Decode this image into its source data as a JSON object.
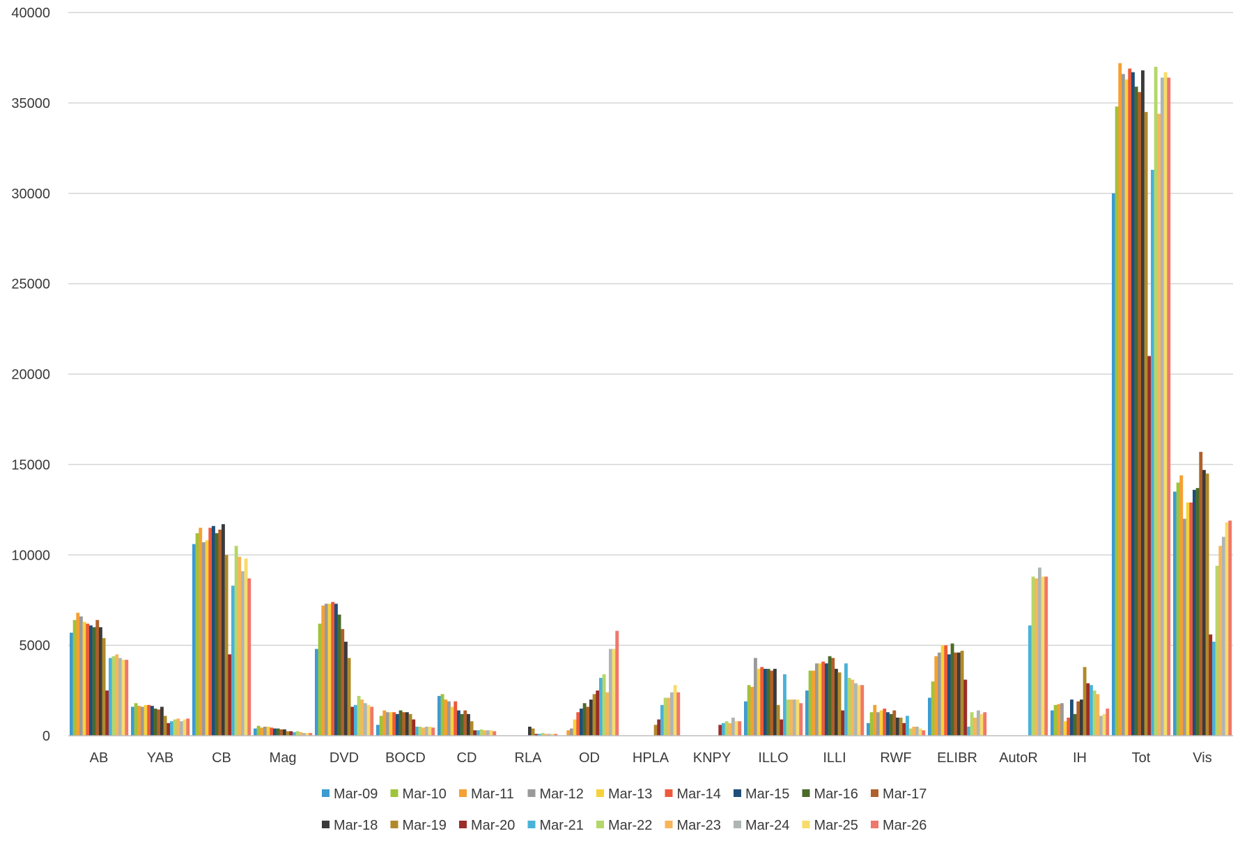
{
  "chart_data": {
    "type": "bar",
    "title": "",
    "xlabel": "",
    "ylabel": "",
    "ylim": [
      0,
      40000
    ],
    "yticks": [
      0,
      5000,
      10000,
      15000,
      20000,
      25000,
      30000,
      35000,
      40000
    ],
    "grid": "horizontal",
    "legend_position": "bottom",
    "categories": [
      "AB",
      "YAB",
      "CB",
      "Mag",
      "DVD",
      "BOCD",
      "CD",
      "RLA",
      "OD",
      "HPLA",
      "KNPY",
      "ILLO",
      "ILLI",
      "RWF",
      "ELIBR",
      "AutoR",
      "IH",
      "Tot",
      "Vis"
    ],
    "series": [
      {
        "name": "Mar-09",
        "color": "#3d9bd1",
        "values": [
          5700,
          1600,
          10600,
          400,
          4800,
          600,
          2200,
          0,
          0,
          0,
          0,
          1900,
          2500,
          700,
          2100,
          0,
          1400,
          30000,
          13500
        ]
      },
      {
        "name": "Mar-10",
        "color": "#9fc33b",
        "values": [
          6400,
          1800,
          11200,
          550,
          6200,
          1100,
          2300,
          0,
          0,
          0,
          0,
          2800,
          3600,
          1300,
          3000,
          0,
          1700,
          34800,
          14000
        ]
      },
      {
        "name": "Mar-11",
        "color": "#f5a033",
        "values": [
          6800,
          1650,
          11500,
          450,
          7200,
          1400,
          2000,
          0,
          300,
          0,
          0,
          2700,
          3600,
          1700,
          4400,
          0,
          1750,
          37200,
          14400
        ]
      },
      {
        "name": "Mar-12",
        "color": "#9a9a9a",
        "values": [
          6600,
          1600,
          10700,
          500,
          7300,
          1300,
          1900,
          0,
          400,
          0,
          0,
          4300,
          4000,
          1300,
          4600,
          0,
          1800,
          36600,
          12000
        ]
      },
      {
        "name": "Mar-13",
        "color": "#f7d13b",
        "values": [
          6300,
          1700,
          10800,
          500,
          7300,
          1300,
          1600,
          0,
          900,
          0,
          0,
          3700,
          4000,
          1400,
          5000,
          0,
          800,
          36300,
          12900
        ]
      },
      {
        "name": "Mar-14",
        "color": "#ed5a3c",
        "values": [
          6200,
          1700,
          11500,
          450,
          7400,
          1300,
          1900,
          0,
          1300,
          0,
          0,
          3800,
          4100,
          1500,
          5000,
          0,
          1000,
          36900,
          12900
        ]
      },
      {
        "name": "Mar-15",
        "color": "#1f4e79",
        "values": [
          6100,
          1650,
          11600,
          400,
          7300,
          1200,
          1400,
          0,
          1500,
          0,
          0,
          3700,
          4000,
          1300,
          4500,
          0,
          2000,
          36700,
          13600
        ]
      },
      {
        "name": "Mar-16",
        "color": "#4a6b2a",
        "values": [
          6000,
          1500,
          11200,
          400,
          6700,
          1400,
          1200,
          0,
          1800,
          0,
          0,
          3700,
          4400,
          1200,
          5100,
          0,
          1200,
          35900,
          13700
        ]
      },
      {
        "name": "Mar-17",
        "color": "#b0602a",
        "values": [
          6400,
          1450,
          11400,
          350,
          5900,
          1300,
          1400,
          0,
          1600,
          0,
          0,
          3600,
          4300,
          1400,
          4600,
          0,
          1900,
          35600,
          15700
        ]
      },
      {
        "name": "Mar-18",
        "color": "#3b3b3b",
        "values": [
          6000,
          1600,
          11700,
          350,
          5200,
          1300,
          1200,
          500,
          2000,
          0,
          0,
          3700,
          3700,
          1000,
          4600,
          0,
          2000,
          36800,
          14700
        ]
      },
      {
        "name": "Mar-19",
        "color": "#b08a2a",
        "values": [
          5400,
          1100,
          10000,
          250,
          4300,
          1200,
          800,
          400,
          2300,
          600,
          0,
          1700,
          3500,
          1000,
          4700,
          0,
          3800,
          34500,
          14500
        ]
      },
      {
        "name": "Mar-20",
        "color": "#9b2d2a",
        "values": [
          2500,
          700,
          4500,
          250,
          1600,
          900,
          300,
          100,
          2500,
          900,
          600,
          900,
          1400,
          700,
          3100,
          0,
          2900,
          21000,
          5600
        ]
      },
      {
        "name": "Mar-21",
        "color": "#4ab2d8",
        "values": [
          4300,
          800,
          8300,
          200,
          1700,
          500,
          300,
          100,
          3200,
          1700,
          700,
          3400,
          4000,
          1100,
          500,
          6100,
          2800,
          31300,
          5200
        ]
      },
      {
        "name": "Mar-22",
        "color": "#b5d66a",
        "values": [
          4400,
          900,
          10500,
          250,
          2200,
          500,
          350,
          150,
          3400,
          2100,
          800,
          2000,
          3200,
          400,
          1300,
          8800,
          2500,
          37000,
          9400
        ]
      },
      {
        "name": "Mar-23",
        "color": "#f7b65a",
        "values": [
          4500,
          950,
          9900,
          200,
          2000,
          450,
          300,
          100,
          2400,
          2100,
          700,
          2000,
          3100,
          500,
          1000,
          8700,
          2300,
          34400,
          10500
        ]
      },
      {
        "name": "Mar-24",
        "color": "#aeb5b5",
        "values": [
          4300,
          800,
          9100,
          150,
          1800,
          500,
          300,
          100,
          4800,
          2400,
          1000,
          2000,
          2900,
          500,
          1400,
          9300,
          1100,
          36400,
          11000
        ]
      },
      {
        "name": "Mar-25",
        "color": "#f7dc6a",
        "values": [
          4200,
          900,
          9800,
          150,
          1700,
          500,
          300,
          100,
          4800,
          2800,
          800,
          2000,
          2800,
          400,
          1200,
          8800,
          1200,
          36700,
          11800
        ]
      },
      {
        "name": "Mar-26",
        "color": "#f0776a",
        "values": [
          4200,
          950,
          8700,
          150,
          1600,
          450,
          250,
          100,
          5800,
          2400,
          800,
          1800,
          2800,
          300,
          1300,
          8800,
          1500,
          36400,
          11900
        ]
      }
    ]
  }
}
